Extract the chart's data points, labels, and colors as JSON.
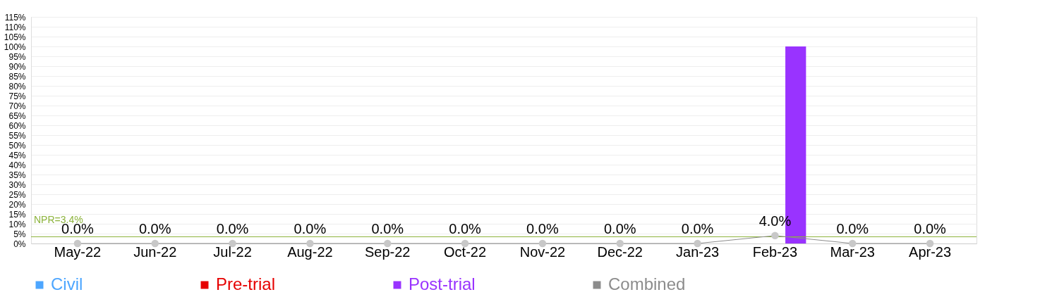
{
  "chart_data": {
    "type": "bar",
    "categories": [
      "May-22",
      "Jun-22",
      "Jul-22",
      "Aug-22",
      "Sep-22",
      "Oct-22",
      "Nov-22",
      "Dec-22",
      "Jan-23",
      "Feb-23",
      "Mar-23",
      "Apr-23"
    ],
    "series": [
      {
        "name": "Civil",
        "color": "#4da6ff",
        "type": "bar",
        "values": [
          null,
          null,
          null,
          null,
          null,
          null,
          null,
          null,
          null,
          null,
          null,
          null
        ]
      },
      {
        "name": "Pre-trial",
        "color": "#e60000",
        "type": "bar",
        "values": [
          null,
          null,
          null,
          null,
          null,
          null,
          null,
          null,
          null,
          null,
          null,
          null
        ]
      },
      {
        "name": "Post-trial",
        "color": "#9933ff",
        "type": "bar",
        "values": [
          null,
          null,
          null,
          null,
          null,
          null,
          null,
          null,
          null,
          100,
          null,
          null
        ]
      },
      {
        "name": "Combined",
        "color": "#8c8c8c",
        "type": "line",
        "marker": "circle",
        "values": [
          0,
          0,
          0,
          0,
          0,
          0,
          0,
          0,
          0,
          4.0,
          0,
          0
        ],
        "value_labels": [
          "0.0%",
          "0.0%",
          "0.0%",
          "0.0%",
          "0.0%",
          "0.0%",
          "0.0%",
          "0.0%",
          "0.0%",
          "4.0%",
          "0.0%",
          "0.0%"
        ]
      }
    ],
    "ylim": [
      0,
      115
    ],
    "yticks": [
      {
        "value": 0,
        "label": "0%"
      },
      {
        "value": 5,
        "label": "5%"
      },
      {
        "value": 10,
        "label": "10%"
      },
      {
        "value": 15,
        "label": "15%"
      },
      {
        "value": 20,
        "label": "20%"
      },
      {
        "value": 25,
        "label": "25%"
      },
      {
        "value": 30,
        "label": "30%"
      },
      {
        "value": 35,
        "label": "35%"
      },
      {
        "value": 40,
        "label": "40%"
      },
      {
        "value": 45,
        "label": "45%"
      },
      {
        "value": 50,
        "label": "50%"
      },
      {
        "value": 55,
        "label": "55%"
      },
      {
        "value": 60,
        "label": "60%"
      },
      {
        "value": 65,
        "label": "65%"
      },
      {
        "value": 70,
        "label": "70%"
      },
      {
        "value": 75,
        "label": "75%"
      },
      {
        "value": 80,
        "label": "80%"
      },
      {
        "value": 85,
        "label": "85%"
      },
      {
        "value": 90,
        "label": "90%"
      },
      {
        "value": 95,
        "label": "95%"
      },
      {
        "value": 100,
        "label": "100%"
      },
      {
        "value": 105,
        "label": "105%"
      },
      {
        "value": 110,
        "label": "110%"
      },
      {
        "value": 115,
        "label": "115%"
      }
    ],
    "ref_lines": [
      {
        "axis": "y",
        "value": 3.4,
        "label": "NPR=3.4%",
        "color": "#8cb33c"
      }
    ],
    "grid": "y",
    "legend": "bottom"
  }
}
